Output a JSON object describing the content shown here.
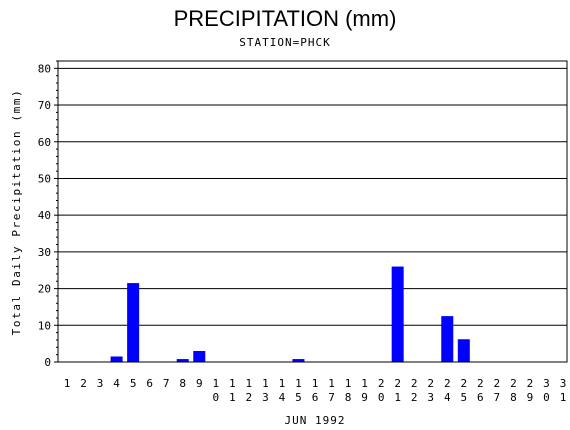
{
  "chart_data": {
    "type": "bar",
    "title": "PRECIPITATION (mm)",
    "subtitle": "STATION=PHCK",
    "xlabel": "JUN 1992",
    "ylabel": "Total Daily Precipitation (mm)",
    "ylim": [
      0,
      82
    ],
    "yticks": [
      0,
      10,
      20,
      30,
      40,
      50,
      60,
      70,
      80
    ],
    "grid": "horizontal",
    "bar_color": "#0000ff",
    "categories": [
      "1",
      "2",
      "3",
      "4",
      "5",
      "6",
      "7",
      "8",
      "9",
      "10",
      "11",
      "12",
      "13",
      "14",
      "15",
      "16",
      "17",
      "18",
      "19",
      "20",
      "21",
      "22",
      "23",
      "24",
      "25",
      "26",
      "27",
      "28",
      "29",
      "30",
      "31"
    ],
    "values": [
      0,
      0,
      0,
      1.5,
      21.5,
      0,
      0,
      0.8,
      3.0,
      0,
      0,
      0,
      0,
      0,
      0.8,
      0,
      0,
      0,
      0,
      0,
      26,
      0,
      0,
      12.5,
      6.2,
      0,
      0,
      0,
      0,
      0,
      0
    ]
  }
}
